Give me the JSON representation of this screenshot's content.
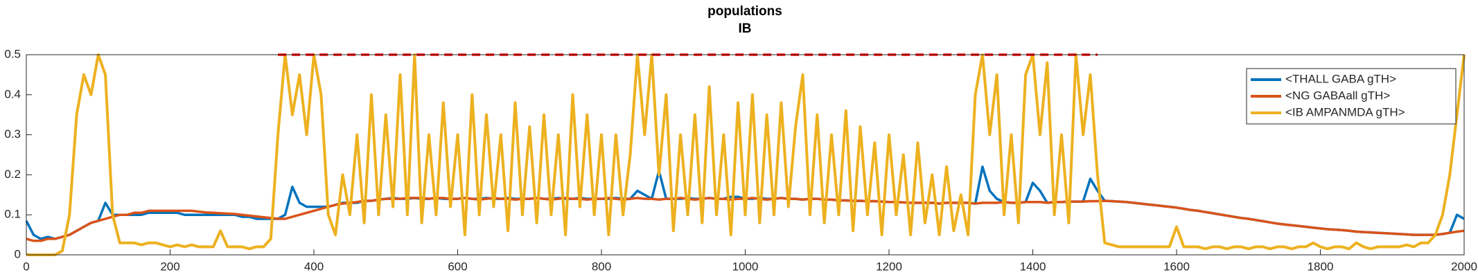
{
  "chart_data": {
    "type": "line",
    "title": "populations",
    "subtitle": "IB",
    "x": [
      0,
      10,
      20,
      30,
      40,
      50,
      60,
      70,
      80,
      90,
      100,
      110,
      120,
      130,
      140,
      150,
      160,
      170,
      180,
      190,
      200,
      210,
      220,
      230,
      240,
      250,
      260,
      270,
      280,
      290,
      300,
      310,
      320,
      330,
      340,
      350,
      360,
      370,
      380,
      390,
      400,
      410,
      420,
      430,
      440,
      450,
      460,
      470,
      480,
      490,
      500,
      510,
      520,
      530,
      540,
      550,
      560,
      570,
      580,
      590,
      600,
      610,
      620,
      630,
      640,
      650,
      660,
      670,
      680,
      690,
      700,
      710,
      720,
      730,
      740,
      750,
      760,
      770,
      780,
      790,
      800,
      810,
      820,
      830,
      840,
      850,
      860,
      870,
      880,
      890,
      900,
      910,
      920,
      930,
      940,
      950,
      960,
      970,
      980,
      990,
      1000,
      1010,
      1020,
      1030,
      1040,
      1050,
      1060,
      1070,
      1080,
      1090,
      1100,
      1110,
      1120,
      1130,
      1140,
      1150,
      1160,
      1170,
      1180,
      1190,
      1200,
      1210,
      1220,
      1230,
      1240,
      1250,
      1260,
      1270,
      1280,
      1290,
      1300,
      1310,
      1320,
      1330,
      1340,
      1350,
      1360,
      1370,
      1380,
      1390,
      1400,
      1410,
      1420,
      1430,
      1440,
      1450,
      1460,
      1470,
      1480,
      1490,
      1500,
      1510,
      1520,
      1530,
      1540,
      1550,
      1560,
      1570,
      1580,
      1590,
      1600,
      1610,
      1620,
      1630,
      1640,
      1650,
      1660,
      1670,
      1680,
      1690,
      1700,
      1710,
      1720,
      1730,
      1740,
      1750,
      1760,
      1770,
      1780,
      1790,
      1800,
      1810,
      1820,
      1830,
      1840,
      1850,
      1860,
      1870,
      1880,
      1890,
      1900,
      1910,
      1920,
      1930,
      1940,
      1950,
      1960,
      1970,
      1980,
      1990,
      2000
    ],
    "series": [
      {
        "name": "<THALL GABA gTH>",
        "color": "#0072bd",
        "values": [
          0.085,
          0.05,
          0.04,
          0.045,
          0.04,
          0.045,
          0.05,
          0.06,
          0.07,
          0.08,
          0.085,
          0.13,
          0.1,
          0.1,
          0.1,
          0.1,
          0.1,
          0.105,
          0.105,
          0.105,
          0.105,
          0.105,
          0.1,
          0.1,
          0.1,
          0.1,
          0.1,
          0.1,
          0.1,
          0.1,
          0.095,
          0.095,
          0.09,
          0.09,
          0.09,
          0.09,
          0.1,
          0.17,
          0.13,
          0.12,
          0.12,
          0.12,
          0.12,
          0.125,
          0.13,
          0.13,
          0.13,
          0.135,
          0.135,
          0.138,
          0.14,
          0.142,
          0.14,
          0.14,
          0.142,
          0.14,
          0.14,
          0.142,
          0.14,
          0.14,
          0.14,
          0.142,
          0.14,
          0.14,
          0.142,
          0.14,
          0.14,
          0.142,
          0.14,
          0.14,
          0.14,
          0.142,
          0.14,
          0.14,
          0.142,
          0.14,
          0.14,
          0.142,
          0.14,
          0.14,
          0.14,
          0.14,
          0.142,
          0.14,
          0.14,
          0.16,
          0.15,
          0.14,
          0.21,
          0.14,
          0.14,
          0.14,
          0.142,
          0.14,
          0.14,
          0.142,
          0.14,
          0.14,
          0.145,
          0.145,
          0.14,
          0.14,
          0.142,
          0.14,
          0.14,
          0.142,
          0.14,
          0.14,
          0.138,
          0.14,
          0.14,
          0.138,
          0.138,
          0.136,
          0.136,
          0.135,
          0.135,
          0.134,
          0.134,
          0.133,
          0.132,
          0.132,
          0.131,
          0.13,
          0.13,
          0.13,
          0.13,
          0.128,
          0.13,
          0.13,
          0.13,
          0.13,
          0.128,
          0.22,
          0.16,
          0.14,
          0.132,
          0.13,
          0.13,
          0.132,
          0.18,
          0.16,
          0.13,
          0.132,
          0.132,
          0.133,
          0.133,
          0.133,
          0.19,
          0.16,
          0.135,
          0.134,
          0.133,
          0.132,
          0.13,
          0.128,
          0.126,
          0.124,
          0.122,
          0.12,
          0.118,
          0.115,
          0.112,
          0.11,
          0.107,
          0.104,
          0.101,
          0.098,
          0.095,
          0.092,
          0.09,
          0.087,
          0.084,
          0.081,
          0.078,
          0.076,
          0.074,
          0.072,
          0.07,
          0.068,
          0.066,
          0.064,
          0.063,
          0.062,
          0.06,
          0.058,
          0.057,
          0.056,
          0.055,
          0.054,
          0.053,
          0.052,
          0.051,
          0.05,
          0.05,
          0.05,
          0.05,
          0.052,
          0.055,
          0.1,
          0.09
        ]
      },
      {
        "name": "<NG GABAall gTH>",
        "color": "#d95319",
        "values": [
          0.04,
          0.035,
          0.035,
          0.04,
          0.04,
          0.045,
          0.05,
          0.06,
          0.07,
          0.08,
          0.085,
          0.09,
          0.095,
          0.1,
          0.1,
          0.105,
          0.105,
          0.11,
          0.11,
          0.11,
          0.11,
          0.11,
          0.11,
          0.11,
          0.108,
          0.106,
          0.105,
          0.104,
          0.103,
          0.102,
          0.1,
          0.098,
          0.096,
          0.094,
          0.092,
          0.09,
          0.09,
          0.095,
          0.1,
          0.105,
          0.11,
          0.115,
          0.12,
          0.125,
          0.128,
          0.13,
          0.132,
          0.135,
          0.135,
          0.138,
          0.14,
          0.14,
          0.14,
          0.142,
          0.142,
          0.142,
          0.14,
          0.142,
          0.142,
          0.14,
          0.14,
          0.142,
          0.14,
          0.138,
          0.14,
          0.142,
          0.14,
          0.14,
          0.138,
          0.14,
          0.14,
          0.142,
          0.14,
          0.138,
          0.14,
          0.142,
          0.14,
          0.14,
          0.138,
          0.14,
          0.14,
          0.142,
          0.14,
          0.138,
          0.14,
          0.142,
          0.14,
          0.14,
          0.138,
          0.14,
          0.14,
          0.142,
          0.14,
          0.138,
          0.14,
          0.142,
          0.14,
          0.14,
          0.138,
          0.14,
          0.14,
          0.142,
          0.14,
          0.138,
          0.14,
          0.142,
          0.14,
          0.14,
          0.138,
          0.14,
          0.14,
          0.138,
          0.138,
          0.136,
          0.136,
          0.135,
          0.135,
          0.134,
          0.134,
          0.133,
          0.132,
          0.132,
          0.131,
          0.13,
          0.13,
          0.13,
          0.13,
          0.128,
          0.13,
          0.13,
          0.13,
          0.13,
          0.128,
          0.13,
          0.13,
          0.13,
          0.132,
          0.13,
          0.13,
          0.132,
          0.132,
          0.132,
          0.13,
          0.132,
          0.132,
          0.133,
          0.133,
          0.133,
          0.134,
          0.134,
          0.135,
          0.134,
          0.133,
          0.132,
          0.13,
          0.128,
          0.126,
          0.124,
          0.122,
          0.12,
          0.118,
          0.115,
          0.112,
          0.11,
          0.107,
          0.104,
          0.101,
          0.098,
          0.095,
          0.092,
          0.09,
          0.087,
          0.084,
          0.081,
          0.078,
          0.076,
          0.074,
          0.072,
          0.07,
          0.068,
          0.066,
          0.064,
          0.063,
          0.062,
          0.06,
          0.058,
          0.057,
          0.056,
          0.055,
          0.054,
          0.053,
          0.052,
          0.051,
          0.05,
          0.05,
          0.05,
          0.05,
          0.052,
          0.055,
          0.058,
          0.06
        ]
      },
      {
        "name": "<IB AMPANMDA gTH>",
        "color": "#edb120",
        "values": [
          0,
          0,
          0,
          0,
          0,
          0.01,
          0.1,
          0.35,
          0.45,
          0.4,
          0.5,
          0.45,
          0.1,
          0.03,
          0.03,
          0.03,
          0.025,
          0.03,
          0.03,
          0.025,
          0.02,
          0.025,
          0.02,
          0.025,
          0.02,
          0.02,
          0.02,
          0.06,
          0.02,
          0.02,
          0.02,
          0.015,
          0.02,
          0.02,
          0.04,
          0.3,
          0.5,
          0.35,
          0.45,
          0.3,
          0.5,
          0.4,
          0.1,
          0.05,
          0.2,
          0.1,
          0.3,
          0.08,
          0.4,
          0.1,
          0.35,
          0.12,
          0.45,
          0.1,
          0.5,
          0.08,
          0.3,
          0.1,
          0.38,
          0.12,
          0.3,
          0.05,
          0.4,
          0.1,
          0.35,
          0.12,
          0.3,
          0.06,
          0.38,
          0.1,
          0.32,
          0.08,
          0.35,
          0.1,
          0.3,
          0.05,
          0.4,
          0.12,
          0.35,
          0.1,
          0.3,
          0.05,
          0.3,
          0.1,
          0.25,
          0.5,
          0.3,
          0.5,
          0.2,
          0.4,
          0.06,
          0.3,
          0.1,
          0.35,
          0.08,
          0.42,
          0.1,
          0.3,
          0.05,
          0.38,
          0.1,
          0.4,
          0.08,
          0.35,
          0.1,
          0.38,
          0.12,
          0.32,
          0.45,
          0.1,
          0.35,
          0.08,
          0.3,
          0.1,
          0.36,
          0.06,
          0.32,
          0.1,
          0.28,
          0.05,
          0.3,
          0.1,
          0.25,
          0.05,
          0.28,
          0.08,
          0.2,
          0.05,
          0.22,
          0.06,
          0.15,
          0.05,
          0.4,
          0.5,
          0.3,
          0.45,
          0.1,
          0.3,
          0.08,
          0.45,
          0.5,
          0.3,
          0.48,
          0.1,
          0.3,
          0.08,
          0.5,
          0.3,
          0.45,
          0.2,
          0.03,
          0.025,
          0.02,
          0.02,
          0.02,
          0.02,
          0.02,
          0.02,
          0.02,
          0.02,
          0.07,
          0.02,
          0.02,
          0.02,
          0.015,
          0.02,
          0.02,
          0.015,
          0.02,
          0.02,
          0.015,
          0.02,
          0.02,
          0.015,
          0.02,
          0.02,
          0.015,
          0.02,
          0.02,
          0.03,
          0.02,
          0.015,
          0.02,
          0.02,
          0.015,
          0.03,
          0.02,
          0.015,
          0.02,
          0.02,
          0.02,
          0.02,
          0.025,
          0.02,
          0.03,
          0.03,
          0.05,
          0.1,
          0.2,
          0.35,
          0.5
        ]
      }
    ],
    "reference_line": {
      "value": 0.5,
      "xrange": [
        350,
        1490
      ],
      "color": "#ff0000"
    },
    "xlim": [
      0,
      2000
    ],
    "xticks": [
      0,
      200,
      400,
      600,
      800,
      1000,
      1200,
      1400,
      1600,
      1800,
      2000
    ],
    "ylim": [
      0,
      0.5
    ],
    "yticks": [
      0,
      0.1,
      0.2,
      0.3,
      0.4,
      0.5
    ],
    "legend": "northeast"
  }
}
